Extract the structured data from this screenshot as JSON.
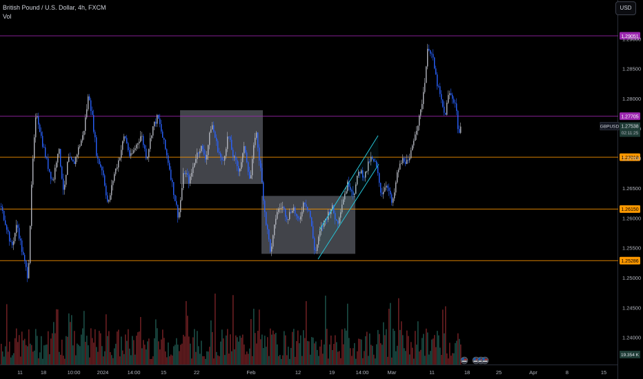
{
  "legend": {
    "symbol_line": "British Pound / U.S. Dollar, 4h, FXCM",
    "volume_label": "Vol"
  },
  "currency_button": "USD",
  "colors": {
    "up": "#b2b5be",
    "down": "#2962ff",
    "vol_up": "#1b4d45",
    "vol_down": "#6b1f22",
    "purple_line": "#9c27b0",
    "orange_line": "#ff9800",
    "channel": "#26c6da"
  },
  "chart_data": {
    "type": "candlestick",
    "symbol": "GBPUSD",
    "interval": "4h",
    "y_axis": {
      "ylim": [
        1.2385,
        1.293
      ],
      "ticks": [
        {
          "value": 1.24,
          "label": "1.24000"
        },
        {
          "value": 1.245,
          "label": "1.24500"
        },
        {
          "value": 1.25,
          "label": "1.25000"
        },
        {
          "value": 1.255,
          "label": "1.25500"
        },
        {
          "value": 1.26,
          "label": "1.26000"
        },
        {
          "value": 1.265,
          "label": "1.26500"
        },
        {
          "value": 1.27,
          "label": "1.27000"
        },
        {
          "value": 1.275,
          "label": "1.27500"
        },
        {
          "value": 1.28,
          "label": "1.28000"
        },
        {
          "value": 1.285,
          "label": "1.28500"
        },
        {
          "value": 1.29,
          "label": "1.29000"
        }
      ]
    },
    "x_axis": {
      "labels": [
        "11",
        "18",
        "10:00",
        "2024",
        "14:00",
        "15",
        "22",
        "Feb",
        "12",
        "19",
        "14:00",
        "Mar",
        "11",
        "18",
        "25",
        "Apr",
        "8",
        "15"
      ],
      "label_x": [
        29,
        63,
        107,
        149,
        194,
        237,
        285,
        364,
        432,
        481,
        525,
        568,
        626,
        677,
        723,
        773,
        822,
        875
      ]
    },
    "horizontal_levels": [
      {
        "value": 1.29051,
        "label": "1.29051",
        "style": "purple"
      },
      {
        "value": 1.27705,
        "label": "1.27705",
        "style": "purple"
      },
      {
        "value": 1.27018,
        "label": "1.27018",
        "style": "orange"
      },
      {
        "value": 1.2615,
        "label": "1.26150",
        "style": "orange"
      },
      {
        "value": 1.25286,
        "label": "1.25286",
        "style": "orange"
      }
    ],
    "last_price": {
      "symbol": "GBPUSD",
      "value": 1.27538,
      "label": "1.27538",
      "countdown": "02:11:25"
    },
    "volume_value_label": "19.354 K",
    "price_path": [
      [
        0,
        1.262
      ],
      [
        8,
        1.259
      ],
      [
        16,
        1.255
      ],
      [
        24,
        1.259
      ],
      [
        32,
        1.254
      ],
      [
        40,
        1.25
      ],
      [
        46,
        1.268
      ],
      [
        52,
        1.278
      ],
      [
        60,
        1.273
      ],
      [
        68,
        1.269
      ],
      [
        76,
        1.266
      ],
      [
        84,
        1.272
      ],
      [
        92,
        1.264
      ],
      [
        98,
        1.27
      ],
      [
        106,
        1.269
      ],
      [
        114,
        1.272
      ],
      [
        120,
        1.274
      ],
      [
        128,
        1.281
      ],
      [
        134,
        1.276
      ],
      [
        140,
        1.27
      ],
      [
        148,
        1.268
      ],
      [
        156,
        1.262
      ],
      [
        164,
        1.267
      ],
      [
        172,
        1.27
      ],
      [
        180,
        1.274
      ],
      [
        188,
        1.27
      ],
      [
        196,
        1.272
      ],
      [
        204,
        1.274
      ],
      [
        212,
        1.27
      ],
      [
        220,
        1.275
      ],
      [
        228,
        1.277
      ],
      [
        236,
        1.273
      ],
      [
        244,
        1.269
      ],
      [
        250,
        1.265
      ],
      [
        258,
        1.26
      ],
      [
        266,
        1.268
      ],
      [
        274,
        1.266
      ],
      [
        282,
        1.27
      ],
      [
        290,
        1.272
      ],
      [
        298,
        1.27
      ],
      [
        306,
        1.276
      ],
      [
        314,
        1.272
      ],
      [
        322,
        1.269
      ],
      [
        330,
        1.274
      ],
      [
        338,
        1.27
      ],
      [
        346,
        1.268
      ],
      [
        354,
        1.272
      ],
      [
        362,
        1.266
      ],
      [
        370,
        1.275
      ],
      [
        378,
        1.267
      ],
      [
        384,
        1.26
      ],
      [
        392,
        1.254
      ],
      [
        400,
        1.261
      ],
      [
        408,
        1.262
      ],
      [
        416,
        1.26
      ],
      [
        424,
        1.262
      ],
      [
        432,
        1.259
      ],
      [
        440,
        1.263
      ],
      [
        448,
        1.261
      ],
      [
        456,
        1.254
      ],
      [
        464,
        1.258
      ],
      [
        472,
        1.26
      ],
      [
        480,
        1.262
      ],
      [
        488,
        1.259
      ],
      [
        496,
        1.263
      ],
      [
        504,
        1.266
      ],
      [
        512,
        1.264
      ],
      [
        520,
        1.268
      ],
      [
        528,
        1.267
      ],
      [
        536,
        1.27
      ],
      [
        544,
        1.269
      ],
      [
        552,
        1.264
      ],
      [
        560,
        1.266
      ],
      [
        568,
        1.262
      ],
      [
        576,
        1.268
      ],
      [
        584,
        1.27
      ],
      [
        592,
        1.269
      ],
      [
        600,
        1.274
      ],
      [
        608,
        1.277
      ],
      [
        614,
        1.282
      ],
      [
        620,
        1.289
      ],
      [
        626,
        1.287
      ],
      [
        632,
        1.283
      ],
      [
        638,
        1.28
      ],
      [
        644,
        1.277
      ],
      [
        650,
        1.281
      ],
      [
        656,
        1.28
      ],
      [
        660,
        1.279
      ],
      [
        664,
        1.274
      ],
      [
        668,
        1.275
      ]
    ],
    "annotations": {
      "rectangles": [
        {
          "t0": 261,
          "t1": 381,
          "p0": 1.27805,
          "p1": 1.2657
        },
        {
          "t0": 379,
          "t1": 515,
          "p0": 1.2637,
          "p1": 1.254
        }
      ],
      "channel": {
        "lower": [
          [
            461,
            1.2531
          ],
          [
            549,
            1.269
          ]
        ],
        "upper": [
          [
            463,
            1.258
          ],
          [
            548,
            1.2738
          ]
        ]
      }
    }
  }
}
